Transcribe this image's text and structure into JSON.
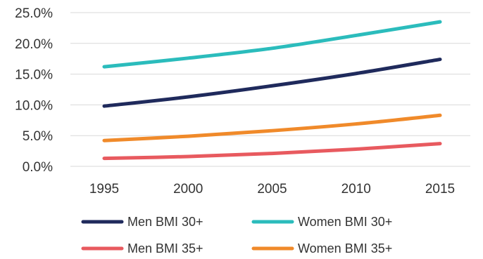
{
  "chart_data": {
    "type": "line",
    "x": [
      "1995",
      "2000",
      "2005",
      "2010",
      "2015"
    ],
    "yticks": [
      "0.0%",
      "5.0%",
      "10.0%",
      "15.0%",
      "20.0%",
      "25.0%"
    ],
    "ylim": [
      0,
      25
    ],
    "grid": true,
    "legend_position": "bottom",
    "series": [
      {
        "name": "Men BMI 30+",
        "color": "#1f2a5c",
        "values": [
          9.8,
          11.3,
          13.1,
          15.1,
          17.4
        ]
      },
      {
        "name": "Women BMI 30+",
        "color": "#2bbcbc",
        "values": [
          16.2,
          17.6,
          19.2,
          21.3,
          23.5
        ]
      },
      {
        "name": "Men BMI 35+",
        "color": "#e85a5f",
        "values": [
          1.3,
          1.6,
          2.1,
          2.8,
          3.7
        ]
      },
      {
        "name": "Women BMI 35+",
        "color": "#f08a2a",
        "values": [
          4.2,
          4.9,
          5.8,
          6.9,
          8.3
        ]
      }
    ]
  }
}
